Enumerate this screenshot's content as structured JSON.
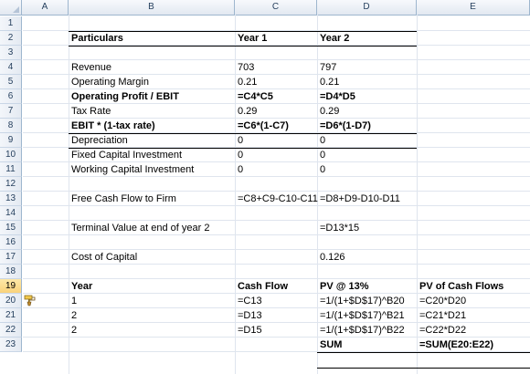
{
  "columns": [
    "A",
    "B",
    "C",
    "D",
    "E"
  ],
  "rows": [
    "1",
    "2",
    "3",
    "4",
    "5",
    "6",
    "7",
    "8",
    "9",
    "10",
    "11",
    "12",
    "13",
    "14",
    "15",
    "16",
    "17",
    "18",
    "19",
    "20",
    "21",
    "22",
    "23"
  ],
  "cells": {
    "B2": "Particulars",
    "C2": "Year 1",
    "D2": "Year 2",
    "B4": "Revenue",
    "C4": "703",
    "D4": "797",
    "B5": "Operating Margin",
    "C5": "0.21",
    "D5": "0.21",
    "B6": "Operating Profit / EBIT",
    "C6": "=C4*C5",
    "D6": "=D4*D5",
    "B7": "Tax Rate",
    "C7": "0.29",
    "D7": "0.29",
    "B8": "EBIT * (1-tax rate)",
    "C8": "=C6*(1-C7)",
    "D8": "=D6*(1-D7)",
    "B9": "Depreciation",
    "C9": "0",
    "D9": "0",
    "B10": "Fixed Capital Investment",
    "C10": "0",
    "D10": "0",
    "B11": "Working Capital Investment",
    "C11": "0",
    "D11": "0",
    "B13": "Free Cash Flow to Firm",
    "C13": "=C8+C9-C10-C11",
    "D13": "=D8+D9-D10-D11",
    "B15": "Terminal Value at end of year 2",
    "D15": "=D13*15",
    "B17": "Cost of Capital",
    "D17": "0.126",
    "B19": "Year",
    "C19": "Cash Flow",
    "D19": "PV @ 13%",
    "E19": "PV of Cash Flows",
    "B20": "1",
    "C20": "=C13",
    "D20": "=1/(1+$D$17)^B20",
    "E20": "=C20*D20",
    "B21": "2",
    "C21": "=D13",
    "D21": "=1/(1+$D$17)^B21",
    "E21": "=C21*D21",
    "B22": "2",
    "C22": "=D15",
    "D22": "=1/(1+$D$17)^B22",
    "E22": "=C22*D22",
    "D23": "SUM",
    "E23": "=SUM(E20:E22)"
  },
  "selected_row": "19"
}
